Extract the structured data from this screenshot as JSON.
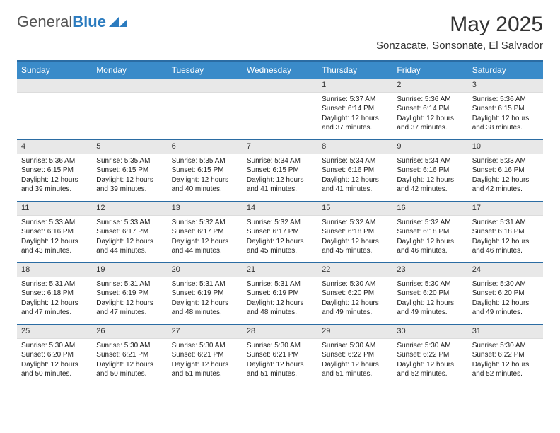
{
  "brand": {
    "part1": "General",
    "part2": "Blue"
  },
  "title": "May 2025",
  "location": "Sonzacate, Sonsonate, El Salvador",
  "colors": {
    "header_bg": "#3a8bc9",
    "header_text": "#ffffff",
    "rule": "#2b6ca3",
    "daynum_bg": "#e8e8e8",
    "text": "#222222",
    "brand_blue": "#2b7bbf"
  },
  "day_names": [
    "Sunday",
    "Monday",
    "Tuesday",
    "Wednesday",
    "Thursday",
    "Friday",
    "Saturday"
  ],
  "weeks": [
    [
      null,
      null,
      null,
      null,
      {
        "n": "1",
        "sr": "5:37 AM",
        "ss": "6:14 PM",
        "dl": "12 hours and 37 minutes."
      },
      {
        "n": "2",
        "sr": "5:36 AM",
        "ss": "6:14 PM",
        "dl": "12 hours and 37 minutes."
      },
      {
        "n": "3",
        "sr": "5:36 AM",
        "ss": "6:15 PM",
        "dl": "12 hours and 38 minutes."
      }
    ],
    [
      {
        "n": "4",
        "sr": "5:36 AM",
        "ss": "6:15 PM",
        "dl": "12 hours and 39 minutes."
      },
      {
        "n": "5",
        "sr": "5:35 AM",
        "ss": "6:15 PM",
        "dl": "12 hours and 39 minutes."
      },
      {
        "n": "6",
        "sr": "5:35 AM",
        "ss": "6:15 PM",
        "dl": "12 hours and 40 minutes."
      },
      {
        "n": "7",
        "sr": "5:34 AM",
        "ss": "6:15 PM",
        "dl": "12 hours and 41 minutes."
      },
      {
        "n": "8",
        "sr": "5:34 AM",
        "ss": "6:16 PM",
        "dl": "12 hours and 41 minutes."
      },
      {
        "n": "9",
        "sr": "5:34 AM",
        "ss": "6:16 PM",
        "dl": "12 hours and 42 minutes."
      },
      {
        "n": "10",
        "sr": "5:33 AM",
        "ss": "6:16 PM",
        "dl": "12 hours and 42 minutes."
      }
    ],
    [
      {
        "n": "11",
        "sr": "5:33 AM",
        "ss": "6:16 PM",
        "dl": "12 hours and 43 minutes."
      },
      {
        "n": "12",
        "sr": "5:33 AM",
        "ss": "6:17 PM",
        "dl": "12 hours and 44 minutes."
      },
      {
        "n": "13",
        "sr": "5:32 AM",
        "ss": "6:17 PM",
        "dl": "12 hours and 44 minutes."
      },
      {
        "n": "14",
        "sr": "5:32 AM",
        "ss": "6:17 PM",
        "dl": "12 hours and 45 minutes."
      },
      {
        "n": "15",
        "sr": "5:32 AM",
        "ss": "6:18 PM",
        "dl": "12 hours and 45 minutes."
      },
      {
        "n": "16",
        "sr": "5:32 AM",
        "ss": "6:18 PM",
        "dl": "12 hours and 46 minutes."
      },
      {
        "n": "17",
        "sr": "5:31 AM",
        "ss": "6:18 PM",
        "dl": "12 hours and 46 minutes."
      }
    ],
    [
      {
        "n": "18",
        "sr": "5:31 AM",
        "ss": "6:18 PM",
        "dl": "12 hours and 47 minutes."
      },
      {
        "n": "19",
        "sr": "5:31 AM",
        "ss": "6:19 PM",
        "dl": "12 hours and 47 minutes."
      },
      {
        "n": "20",
        "sr": "5:31 AM",
        "ss": "6:19 PM",
        "dl": "12 hours and 48 minutes."
      },
      {
        "n": "21",
        "sr": "5:31 AM",
        "ss": "6:19 PM",
        "dl": "12 hours and 48 minutes."
      },
      {
        "n": "22",
        "sr": "5:30 AM",
        "ss": "6:20 PM",
        "dl": "12 hours and 49 minutes."
      },
      {
        "n": "23",
        "sr": "5:30 AM",
        "ss": "6:20 PM",
        "dl": "12 hours and 49 minutes."
      },
      {
        "n": "24",
        "sr": "5:30 AM",
        "ss": "6:20 PM",
        "dl": "12 hours and 49 minutes."
      }
    ],
    [
      {
        "n": "25",
        "sr": "5:30 AM",
        "ss": "6:20 PM",
        "dl": "12 hours and 50 minutes."
      },
      {
        "n": "26",
        "sr": "5:30 AM",
        "ss": "6:21 PM",
        "dl": "12 hours and 50 minutes."
      },
      {
        "n": "27",
        "sr": "5:30 AM",
        "ss": "6:21 PM",
        "dl": "12 hours and 51 minutes."
      },
      {
        "n": "28",
        "sr": "5:30 AM",
        "ss": "6:21 PM",
        "dl": "12 hours and 51 minutes."
      },
      {
        "n": "29",
        "sr": "5:30 AM",
        "ss": "6:22 PM",
        "dl": "12 hours and 51 minutes."
      },
      {
        "n": "30",
        "sr": "5:30 AM",
        "ss": "6:22 PM",
        "dl": "12 hours and 52 minutes."
      },
      {
        "n": "31",
        "sr": "5:30 AM",
        "ss": "6:22 PM",
        "dl": "12 hours and 52 minutes."
      }
    ]
  ],
  "labels": {
    "sunrise": "Sunrise: ",
    "sunset": "Sunset: ",
    "daylight": "Daylight: "
  }
}
